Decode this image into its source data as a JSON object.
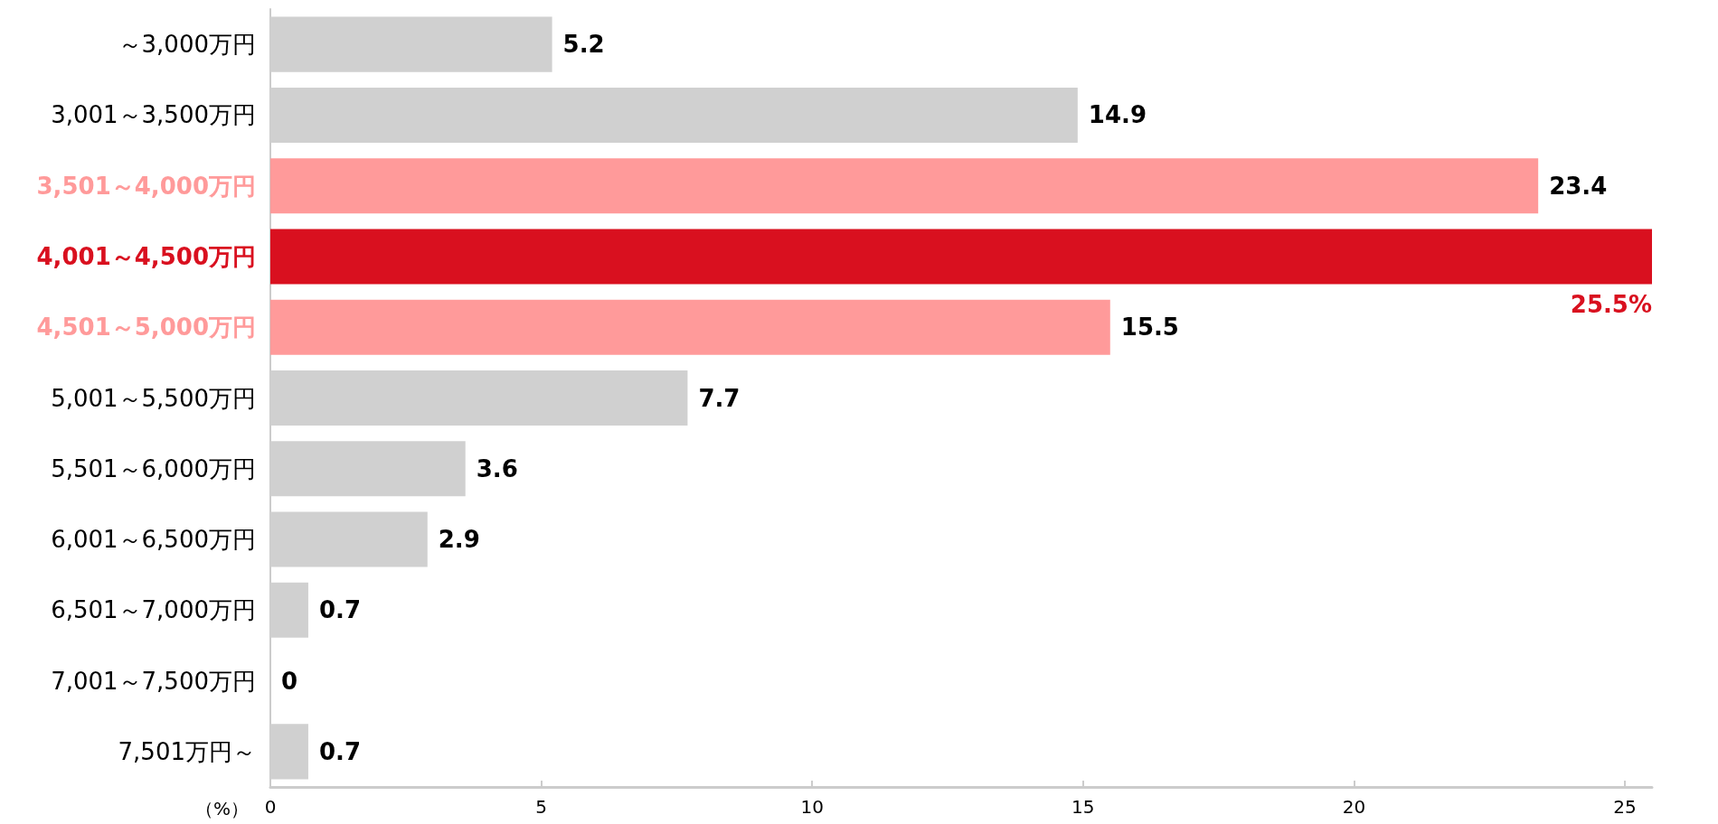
{
  "chart_data": {
    "type": "bar",
    "orientation": "horizontal",
    "categories": [
      "～3,000万円",
      "3,001～3,500万円",
      "3,501～4,000万円",
      "4,001～4,500万円",
      "4,501～5,000万円",
      "5,001～5,500万円",
      "5,501～6,000万円",
      "6,001～6,500万円",
      "6,501～7,000万円",
      "7,001～7,500万円",
      "7,501万円～"
    ],
    "values": [
      5.2,
      14.9,
      23.4,
      25.5,
      15.5,
      7.7,
      3.6,
      2.9,
      0.7,
      0,
      0.7
    ],
    "colors": [
      "#d0d0d0",
      "#d0d0d0",
      "#ff9a9a",
      "#d9101f",
      "#ff9a9a",
      "#d0d0d0",
      "#d0d0d0",
      "#d0d0d0",
      "#d0d0d0",
      "#d0d0d0",
      "#d0d0d0"
    ],
    "value_labels": [
      "5.2",
      "14.9",
      "23.4",
      "25.5%",
      "15.5",
      "7.7",
      "3.6",
      "2.9",
      "0.7",
      "0",
      "0.7"
    ],
    "xlabel": "（%）",
    "xlim": [
      0,
      25.5
    ],
    "xticks": [
      0,
      5,
      10,
      15,
      20,
      25
    ]
  }
}
